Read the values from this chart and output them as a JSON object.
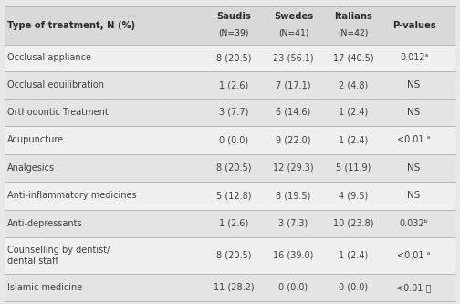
{
  "col_headers": [
    "Type of treatment, N (%)",
    "Saudis",
    "Swedes",
    "Italians",
    "P-values"
  ],
  "col_subheaders": [
    "",
    "(N=39)",
    "(N=41)",
    "(N=42)",
    ""
  ],
  "rows": [
    [
      "Occlusal appliance",
      "8 (20.5)",
      "23 (56.1)",
      "17 (40.5)",
      "0.012ᵃ"
    ],
    [
      "Occlusal equilibration",
      "1 (2.6)",
      "7 (17.1)",
      "2 (4.8)",
      "NS"
    ],
    [
      "Orthodontic Treatment",
      "3 (7.7)",
      "6 (14.6)",
      "1 (2.4)",
      "NS"
    ],
    [
      "Acupuncture",
      "0 (0.0)",
      "9 (22.0)",
      "1 (2.4)",
      "<0.01 ᵃ"
    ],
    [
      "Analgesics",
      "8 (20.5)",
      "12 (29.3)",
      "5 (11.9)",
      "NS"
    ],
    [
      "Anti-inflammatory medicines",
      "5 (12.8)",
      "8 (19.5)",
      "4 (9.5)",
      "NS"
    ],
    [
      "Anti-depressants",
      "1 (2.6)",
      "3 (7.3)",
      "10 (23.8)",
      "0.032ᵇ"
    ],
    [
      "Counselling by dentist/\ndental staff",
      "8 (20.5)",
      "16 (39.0)",
      "1 (2.4)",
      "<0.01 ᵃ"
    ],
    [
      "Islamic medicine",
      "11 (28.2)",
      "0 (0.0)",
      "0 (0.0)",
      "<0.01 ၣ"
    ]
  ],
  "bg_color_header": "#d9d9d9",
  "bg_color_light": "#e8e8e8",
  "bg_color_white": "#f5f5f5",
  "text_color": "#404040",
  "header_text_color": "#2a2a2a"
}
